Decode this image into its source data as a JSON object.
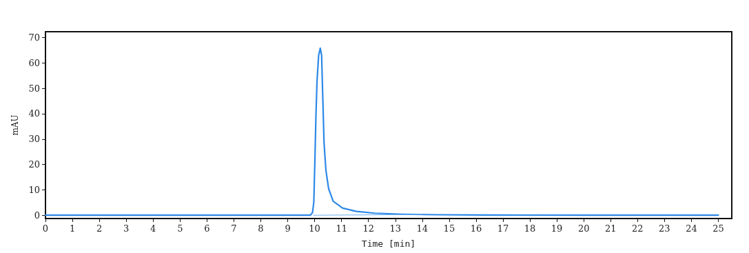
{
  "chart_data": {
    "type": "line",
    "xlabel": "Time [min]",
    "ylabel": "mAU",
    "xlim": [
      0,
      25.5
    ],
    "xticks": [
      0,
      1,
      2,
      3,
      4,
      5,
      6,
      7,
      8,
      9,
      10,
      11,
      12,
      13,
      14,
      15,
      16,
      17,
      18,
      19,
      20,
      21,
      22,
      23,
      24,
      25
    ],
    "ylim": [
      -1.3,
      72.3
    ],
    "yticks": [
      0,
      10,
      20,
      30,
      40,
      50,
      60,
      70
    ],
    "grid": false,
    "marker": "none",
    "line_style": "solid",
    "series": [
      {
        "color": "#2c88e8",
        "x": [
          0,
          5,
          9,
          9.84,
          9.92,
          9.97,
          10.01,
          10.05,
          10.09,
          10.15,
          10.21,
          10.26,
          10.31,
          10.35,
          10.42,
          10.52,
          10.69,
          11.04,
          11.55,
          12.23,
          13.26,
          14.54,
          16.25,
          20,
          25
        ],
        "values": [
          0,
          0,
          0,
          0,
          1,
          5.1,
          21.4,
          39.5,
          53,
          63,
          65.8,
          63,
          44,
          28.6,
          17.7,
          10.5,
          5.5,
          2.8,
          1.5,
          0.8,
          0.4,
          0.2,
          0.1,
          0,
          0
        ]
      },
      {
        "color": "#6aaef0",
        "x": [
          9.95,
          14
        ],
        "values": [
          0,
          0.3
        ]
      }
    ]
  }
}
